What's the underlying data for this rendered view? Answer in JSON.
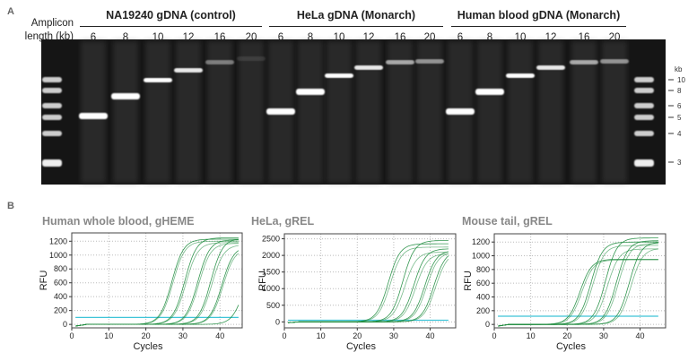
{
  "panel_a": {
    "letter": "A",
    "amplicon_label": [
      "Amplicon",
      "length (kb)"
    ],
    "groups": [
      {
        "title": "NA19240 gDNA (control)",
        "lanes": [
          "6",
          "8",
          "10",
          "12",
          "16",
          "20"
        ]
      },
      {
        "title": "HeLa gDNA (Monarch)",
        "lanes": [
          "6",
          "8",
          "10",
          "12",
          "16",
          "20"
        ]
      },
      {
        "title": "Human blood gDNA (Monarch)",
        "lanes": [
          "6",
          "8",
          "10",
          "12",
          "16",
          "20"
        ]
      }
    ],
    "marker_unit": "kb",
    "marker_sizes": [
      "10",
      "8",
      "6",
      "5",
      "4",
      "3"
    ]
  },
  "panel_b": {
    "letter": "B"
  },
  "chart_data": [
    {
      "type": "line",
      "title": "Human whole blood, gHEME",
      "xlabel": "Cycles",
      "ylabel": "RFU",
      "xlim": [
        0,
        46
      ],
      "ylim": [
        -50,
        1320
      ],
      "xticks": [
        0,
        10,
        20,
        30,
        40
      ],
      "yticks": [
        0,
        200,
        400,
        600,
        800,
        1000,
        1200
      ],
      "grid": true,
      "threshold": 100,
      "threshold_color": "#3fc4d8",
      "curve_color": "#1e8c3e",
      "curves_midpoint_cycle": [
        27,
        27.3,
        30.5,
        30.8,
        34,
        34.3,
        37.5,
        37.8,
        40.5,
        40.8,
        46.5
      ],
      "curves_plateau": [
        1230,
        1200,
        1250,
        1180,
        1220,
        1170,
        1240,
        1150,
        1130,
        1100,
        1000
      ]
    },
    {
      "type": "line",
      "title": "HeLa, gREL",
      "xlabel": "Cycles",
      "ylabel": "RFU",
      "xlim": [
        0,
        47
      ],
      "ylim": [
        -180,
        2650
      ],
      "xticks": [
        0,
        10,
        20,
        30,
        40
      ],
      "yticks": [
        0,
        500,
        1000,
        1500,
        2000,
        2500
      ],
      "grid": true,
      "threshold": 50,
      "threshold_color": "#3fc4d8",
      "curve_color": "#1e8c3e",
      "curves_midpoint_cycle": [
        28.5,
        29,
        32.5,
        33,
        35.5,
        36,
        38.5,
        39,
        41,
        41.5
      ],
      "curves_plateau": [
        2350,
        2250,
        2450,
        2100,
        2200,
        2050,
        2150,
        2100,
        2150,
        2100
      ]
    },
    {
      "type": "line",
      "title": "Mouse tail, gREL",
      "xlabel": "Cycles",
      "ylabel": "RFU",
      "xlim": [
        0,
        47
      ],
      "ylim": [
        -50,
        1320
      ],
      "xticks": [
        0,
        10,
        20,
        30,
        40
      ],
      "yticks": [
        0,
        200,
        400,
        600,
        800,
        1000,
        1200
      ],
      "grid": true,
      "threshold": 120,
      "threshold_color": "#3fc4d8",
      "curve_color": "#1e8c3e",
      "curves_midpoint_cycle": [
        23.5,
        24,
        26.5,
        27,
        30.5,
        31,
        33.5,
        34,
        37,
        37.5
      ],
      "curves_plateau": [
        950,
        940,
        1200,
        1150,
        1260,
        1100,
        1220,
        1180,
        1200,
        1110
      ]
    }
  ]
}
